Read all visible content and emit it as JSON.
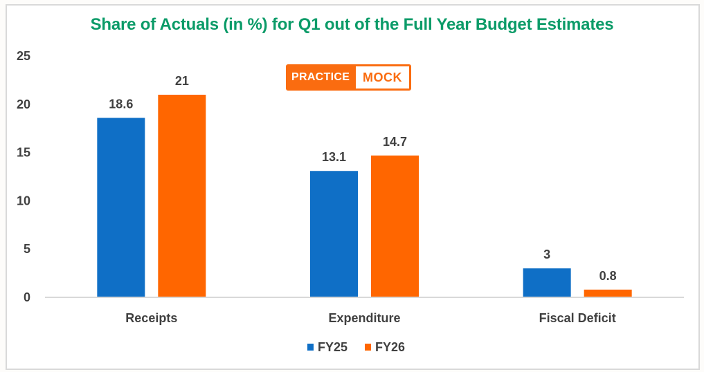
{
  "chart_data": {
    "type": "bar",
    "title": "Share of Actuals (in %) for Q1 out of the Full Year Budget Estimates",
    "categories": [
      "Receipts",
      "Expenditure",
      "Fiscal Deficit"
    ],
    "series": [
      {
        "name": "FY25",
        "color": "#0f6fc6",
        "values": [
          18.6,
          13.1,
          3
        ]
      },
      {
        "name": "FY26",
        "color": "#ff6600",
        "values": [
          21,
          14.7,
          0.8
        ]
      }
    ],
    "data_labels": [
      [
        "18.6",
        "13.1",
        "3"
      ],
      [
        "21",
        "14.7",
        "0.8"
      ]
    ],
    "xlabel": "",
    "ylabel": "",
    "ylim": [
      0,
      25
    ],
    "yticks": [
      "0",
      "5",
      "10",
      "15",
      "20",
      "25"
    ],
    "grid": false,
    "legend": "bottom"
  },
  "logo": {
    "left_text": "PRACTICE",
    "right_text": "MOCK"
  },
  "colors": {
    "title": "#0b9b68",
    "axis_text": "#404040",
    "axis_line": "#d9d9d9",
    "logo": "#fa6c10"
  }
}
